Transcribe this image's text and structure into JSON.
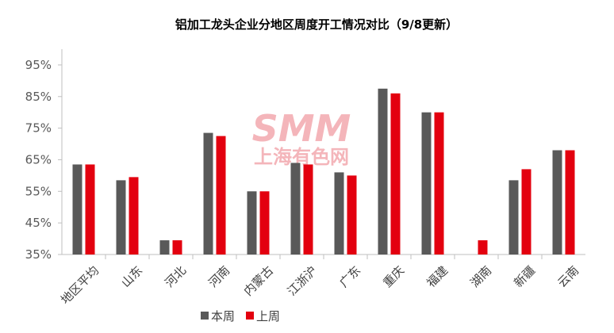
{
  "chart_data": {
    "type": "bar",
    "title": "铝加工龙头企业分地区周度开工情况对比（9/8更新）",
    "categories": [
      "地区平均",
      "山东",
      "河北",
      "河南",
      "内蒙古",
      "江浙沪",
      "广东",
      "重庆",
      "福建",
      "湖南",
      "新疆",
      "云南"
    ],
    "series": [
      {
        "name": "本周",
        "color": "#595959",
        "values": [
          63.5,
          58.5,
          39.5,
          73.5,
          55,
          64,
          61,
          87.5,
          80,
          null,
          58.5,
          68
        ]
      },
      {
        "name": "上周",
        "color": "#e3000f",
        "values": [
          63.5,
          59.5,
          39.5,
          72.5,
          55,
          63.5,
          60,
          86,
          80,
          39.5,
          62,
          68
        ]
      }
    ],
    "ylim": [
      35,
      100
    ],
    "yticks": [
      35,
      45,
      55,
      65,
      75,
      85,
      95
    ],
    "ytick_labels": [
      "35%",
      "45%",
      "55%",
      "65%",
      "75%",
      "85%",
      "95%"
    ],
    "legend_position": "bottom-center",
    "grid": false,
    "watermark": {
      "main": "SMM",
      "sub": "上海有色网"
    }
  }
}
